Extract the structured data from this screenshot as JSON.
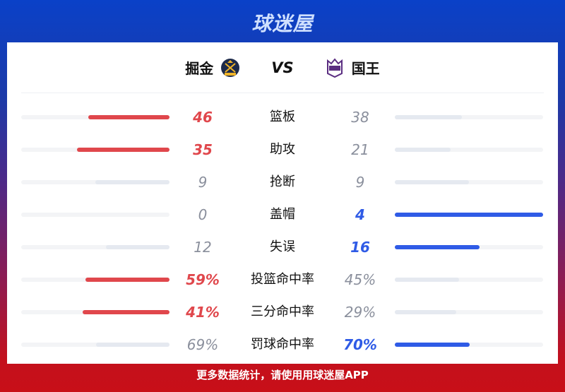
{
  "brand": "球迷屋",
  "home": {
    "name": "掘金",
    "logo": "nuggets-logo"
  },
  "vs": "VS",
  "away": {
    "name": "国王",
    "logo": "kings-logo"
  },
  "colors": {
    "home": "#e0474c",
    "away": "#2f5be6",
    "neutral": "#e5e9f0",
    "muted": "#8a8f9c"
  },
  "stats": [
    {
      "label": "篮板",
      "home": "46",
      "away": "38"
    },
    {
      "label": "助攻",
      "home": "35",
      "away": "21"
    },
    {
      "label": "抢断",
      "home": "9",
      "away": "9"
    },
    {
      "label": "盖帽",
      "home": "0",
      "away": "4"
    },
    {
      "label": "失误",
      "home": "12",
      "away": "16"
    },
    {
      "label": "投篮命中率",
      "home": "59%",
      "away": "45%"
    },
    {
      "label": "三分命中率",
      "home": "41%",
      "away": "29%"
    },
    {
      "label": "罚球命中率",
      "home": "69%",
      "away": "70%"
    }
  ],
  "footer": "更多数据统计，请使用用球迷屋APP"
}
